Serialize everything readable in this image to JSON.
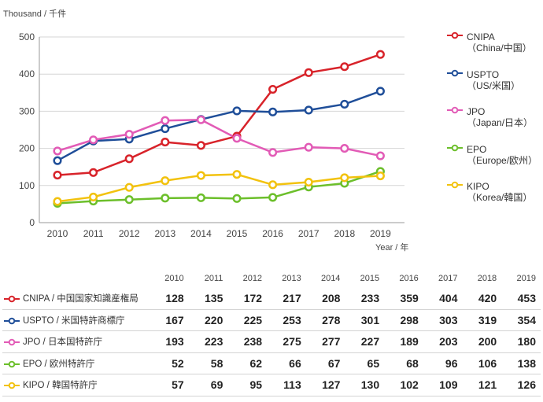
{
  "chart_data": {
    "type": "line",
    "categories": [
      "2010",
      "2011",
      "2012",
      "2013",
      "2014",
      "2015",
      "2016",
      "2017",
      "2018",
      "2019"
    ],
    "ylim": [
      0,
      500
    ],
    "yticks": [
      0,
      100,
      200,
      300,
      400,
      500
    ],
    "ylabel": "Thousand / 千件",
    "xlabel": "Year / 年",
    "grid": "horizontal",
    "legend_position": "right",
    "series": [
      {
        "name_line1": "CNIPA",
        "name_line2": "（China/中国）",
        "table_label": "CNIPA / 中国国家知識産権局",
        "color": "#d8232a",
        "values": [
          128,
          135,
          172,
          217,
          208,
          233,
          359,
          404,
          420,
          453
        ]
      },
      {
        "name_line1": "USPTO",
        "name_line2": "（US/米国）",
        "table_label": "USPTO / 米国特許商標庁",
        "color": "#1f4e99",
        "values": [
          167,
          220,
          225,
          253,
          278,
          301,
          298,
          303,
          319,
          354
        ]
      },
      {
        "name_line1": "JPO",
        "name_line2": "（Japan/日本）",
        "table_label": "JPO / 日本国特許庁",
        "color": "#e25bb6",
        "values": [
          193,
          223,
          238,
          275,
          277,
          227,
          189,
          203,
          200,
          180
        ]
      },
      {
        "name_line1": "EPO",
        "name_line2": "（Europe/欧州）",
        "table_label": "EPO / 欧州特許庁",
        "color": "#6cbf2b",
        "values": [
          52,
          58,
          62,
          66,
          67,
          65,
          68,
          96,
          106,
          138
        ]
      },
      {
        "name_line1": "KIPO",
        "name_line2": "（Korea/韓国）",
        "table_label": "KIPO / 韓国特許庁",
        "color": "#f2c20e",
        "values": [
          57,
          69,
          95,
          113,
          127,
          130,
          102,
          109,
          121,
          126
        ]
      }
    ]
  }
}
